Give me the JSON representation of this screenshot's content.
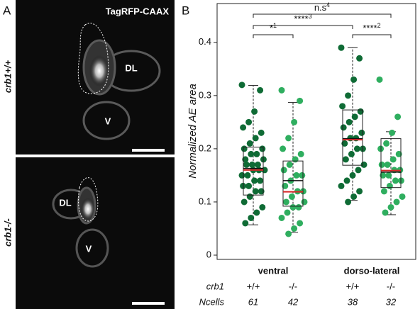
{
  "panel_a": {
    "label": "A",
    "title": "TagRFP-CAAX",
    "rows": [
      {
        "genotype": "crb1+/+",
        "cells": [
          "DL",
          "V"
        ]
      },
      {
        "genotype": "crb1-/-",
        "cells": [
          "DL",
          "V"
        ]
      }
    ]
  },
  "chart_data": {
    "type": "box",
    "panel_label": "B",
    "y_label": "Normalized AE area",
    "ylim": [
      -0.008,
      0.473
    ],
    "yticks": [
      0,
      0.1,
      0.2,
      0.3,
      0.4
    ],
    "regions": [
      "ventral",
      "dorso-lateral"
    ],
    "row_labels": {
      "genotype": "crb1",
      "count": "Ncells"
    },
    "series": [
      {
        "genotype": "+/+",
        "n": 61,
        "color": "#0f6b35",
        "whisker_low": 0.057,
        "q1": 0.113,
        "median": 0.163,
        "mean": 0.16,
        "q3": 0.203,
        "whisker_high": 0.319,
        "values": [
          0.32,
          0.31,
          0.27,
          0.25,
          0.24,
          0.23,
          0.22,
          0.21,
          0.2,
          0.2,
          0.19,
          0.19,
          0.18,
          0.18,
          0.17,
          0.17,
          0.17,
          0.16,
          0.16,
          0.16,
          0.15,
          0.15,
          0.14,
          0.14,
          0.13,
          0.13,
          0.12,
          0.12,
          0.11,
          0.1,
          0.09,
          0.08,
          0.07,
          0.06
        ]
      },
      {
        "genotype": "-/-",
        "n": 42,
        "color": "#2fae5f",
        "whisker_low": 0.043,
        "q1": 0.092,
        "median": 0.14,
        "mean": 0.119,
        "q3": 0.177,
        "whisker_high": 0.287,
        "values": [
          0.31,
          0.29,
          0.25,
          0.22,
          0.2,
          0.19,
          0.18,
          0.17,
          0.16,
          0.15,
          0.15,
          0.14,
          0.13,
          0.12,
          0.12,
          0.11,
          0.1,
          0.1,
          0.09,
          0.09,
          0.08,
          0.07,
          0.06,
          0.05,
          0.04
        ]
      },
      {
        "genotype": "+/+",
        "n": 38,
        "color": "#0f6b35",
        "whisker_low": 0.103,
        "q1": 0.169,
        "median": 0.219,
        "mean": 0.217,
        "q3": 0.273,
        "whisker_high": 0.39,
        "values": [
          0.39,
          0.37,
          0.33,
          0.3,
          0.28,
          0.27,
          0.26,
          0.25,
          0.24,
          0.23,
          0.22,
          0.22,
          0.21,
          0.2,
          0.2,
          0.19,
          0.18,
          0.17,
          0.16,
          0.15,
          0.14,
          0.13,
          0.12,
          0.11,
          0.1
        ]
      },
      {
        "genotype": "-/-",
        "n": 32,
        "color": "#2fae5f",
        "whisker_low": 0.076,
        "q1": 0.127,
        "median": 0.156,
        "mean": 0.159,
        "q3": 0.219,
        "whisker_high": 0.232,
        "values": [
          0.33,
          0.26,
          0.23,
          0.21,
          0.2,
          0.19,
          0.18,
          0.17,
          0.17,
          0.16,
          0.16,
          0.15,
          0.15,
          0.14,
          0.14,
          0.13,
          0.12,
          0.11,
          0.1,
          0.09,
          0.08
        ]
      }
    ],
    "annotations": [
      {
        "text": "n.s",
        "sup": "4"
      },
      {
        "text": "****",
        "sup": "3"
      },
      {
        "text": "*",
        "sup": "1"
      },
      {
        "text": "****",
        "sup": "2"
      }
    ],
    "mean_color": "#d62728"
  }
}
